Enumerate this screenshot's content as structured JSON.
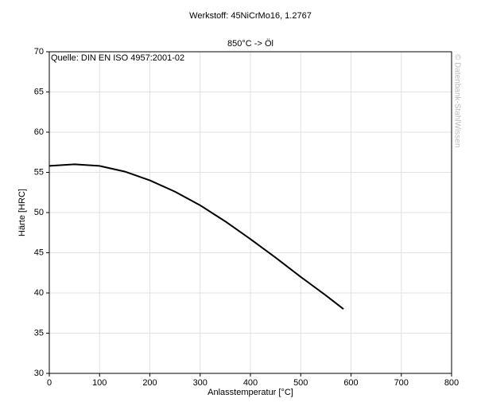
{
  "chart_data": {
    "type": "line",
    "title": "Werkstoff: 45NiCrMo16, 1.2767",
    "subtitle": "850°C -> Öl",
    "source": "Quelle: DIN EN ISO 4957:2001-02",
    "watermark": "© Datenbank-StahlWissen",
    "x_label": "Anlasstemperatur [°C]",
    "y_label": "Härte [HRC]",
    "x": [
      0,
      50,
      100,
      150,
      200,
      250,
      300,
      350,
      400,
      450,
      500,
      550,
      585
    ],
    "series": [
      {
        "name": "850°C -> Öl",
        "color": "#000000",
        "values": [
          55.8,
          56.0,
          55.8,
          55.1,
          54.0,
          52.6,
          50.9,
          48.9,
          46.7,
          44.4,
          42.0,
          39.7,
          38.0
        ]
      }
    ],
    "xlim": [
      0,
      800
    ],
    "xticks": [
      0,
      100,
      200,
      300,
      400,
      500,
      600,
      700,
      800
    ],
    "ylim": [
      30,
      70
    ],
    "yticks": [
      30,
      35,
      40,
      45,
      50,
      55,
      60,
      65,
      70
    ],
    "grid": true
  }
}
